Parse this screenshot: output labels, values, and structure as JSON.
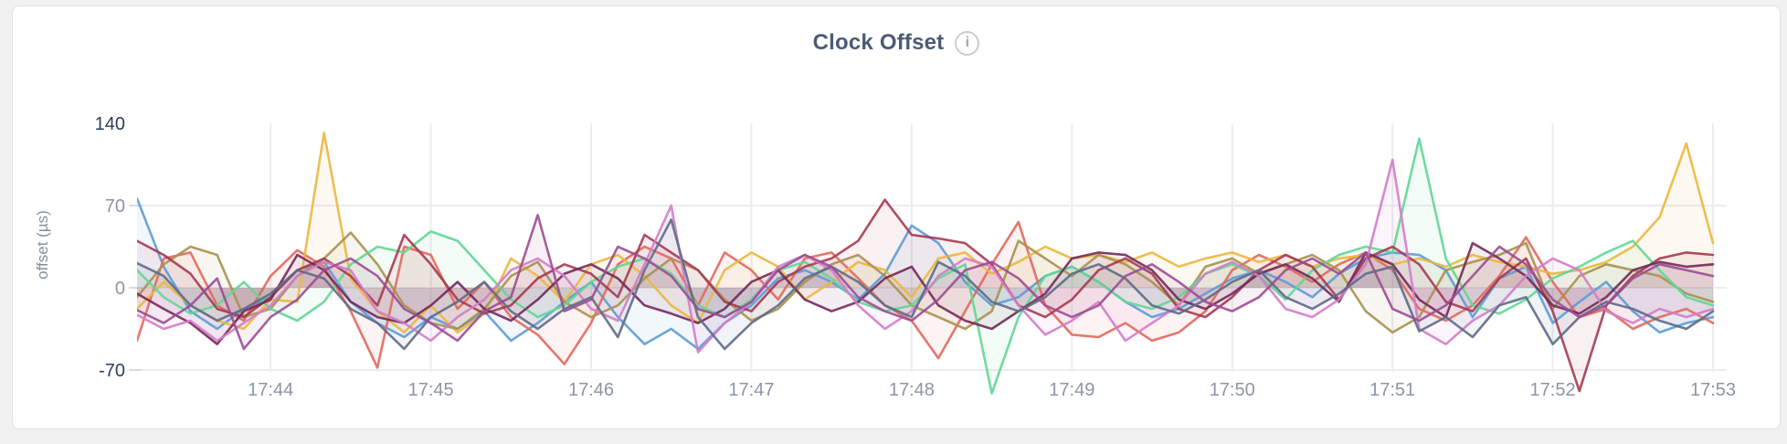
{
  "page": {
    "background_color": "#f1f1f2",
    "card_background": "#ffffff",
    "card_border_color": "#e1e1e4"
  },
  "header": {
    "title": "Clock Offset",
    "info_icon_glyph": "i"
  },
  "axis_style": {
    "tick_label_color": "#8b95a7",
    "tick_label_color_strong": "#2c3e5d",
    "axis_title_color": "#848e9c",
    "grid_color": "#ececee",
    "tick_dash_color": "#d8dbe0"
  },
  "chart_data": {
    "type": "line",
    "title": "Clock Offset",
    "xlabel": "",
    "ylabel": "offset (µs)",
    "y_ticks": [
      140,
      70,
      0,
      -70
    ],
    "ylim": [
      -90,
      165
    ],
    "grid": true,
    "legend_position": "none",
    "x_start_time": "17:43:10",
    "sample_interval_seconds": 10,
    "x_tick_labels": [
      "17:44",
      "17:45",
      "17:46",
      "17:47",
      "17:48",
      "17:49",
      "17:50",
      "17:51",
      "17:52",
      "17:53"
    ],
    "x_tick_indices": [
      5,
      11,
      17,
      23,
      29,
      35,
      41,
      47,
      53,
      59
    ],
    "fill_opacity": 0.08,
    "series": [
      {
        "name": "blue",
        "color": "#5B9BD5",
        "values": [
          76,
          18,
          -20,
          -35,
          -18,
          -8,
          15,
          22,
          -12,
          -30,
          -42,
          -25,
          -35,
          -20,
          -45,
          -30,
          -12,
          5,
          -25,
          -48,
          -35,
          -52,
          -30,
          -15,
          8,
          15,
          5,
          -10,
          12,
          53,
          38,
          5,
          -15,
          -8,
          10,
          18,
          5,
          -12,
          -25,
          -18,
          -5,
          8,
          15,
          5,
          -8,
          12,
          25,
          30,
          28,
          15,
          -25,
          8,
          18,
          -30,
          -12,
          5,
          -20,
          -38,
          -30,
          -25
        ]
      },
      {
        "name": "red",
        "color": "#E2685C",
        "values": [
          -45,
          25,
          30,
          -15,
          -28,
          10,
          32,
          18,
          -20,
          -68,
          35,
          28,
          -18,
          5,
          -25,
          -40,
          -65,
          -30,
          20,
          35,
          25,
          -15,
          30,
          15,
          -10,
          25,
          30,
          8,
          -15,
          -28,
          -60,
          -20,
          20,
          56,
          -15,
          -40,
          -42,
          -30,
          -45,
          -38,
          -20,
          15,
          28,
          18,
          5,
          20,
          30,
          15,
          -18,
          -28,
          -15,
          10,
          43,
          5,
          -25,
          -18,
          -35,
          -25,
          -18,
          -30
        ]
      },
      {
        "name": "yellow",
        "color": "#EBB73E",
        "values": [
          -18,
          5,
          -15,
          -28,
          -35,
          -10,
          -12,
          132,
          8,
          -20,
          -38,
          -15,
          -38,
          -22,
          25,
          10,
          -12,
          20,
          28,
          10,
          -15,
          -30,
          15,
          30,
          18,
          -10,
          5,
          22,
          15,
          -8,
          25,
          30,
          12,
          22,
          35,
          25,
          28,
          22,
          30,
          18,
          25,
          30,
          22,
          28,
          18,
          25,
          28,
          20,
          25,
          18,
          28,
          22,
          18,
          12,
          15,
          22,
          35,
          60,
          123,
          38
        ]
      },
      {
        "name": "olive",
        "color": "#A8904F",
        "values": [
          -8,
          20,
          35,
          28,
          -25,
          -18,
          10,
          25,
          47,
          20,
          -15,
          -30,
          -35,
          -18,
          10,
          22,
          -12,
          -25,
          -15,
          8,
          25,
          15,
          -10,
          -28,
          -18,
          5,
          20,
          28,
          10,
          -15,
          -25,
          -35,
          -20,
          40,
          25,
          10,
          28,
          20,
          5,
          -15,
          18,
          25,
          12,
          20,
          28,
          15,
          -20,
          -38,
          -25,
          15,
          22,
          28,
          38,
          -18,
          10,
          20,
          15,
          10,
          -5,
          -12
        ]
      },
      {
        "name": "green",
        "color": "#62D693",
        "values": [
          15,
          -8,
          -22,
          -15,
          5,
          -18,
          -28,
          -12,
          20,
          35,
          30,
          48,
          40,
          15,
          -10,
          -25,
          -15,
          5,
          18,
          25,
          12,
          -15,
          -25,
          -10,
          15,
          22,
          8,
          -12,
          -20,
          -15,
          8,
          20,
          -90,
          -25,
          10,
          18,
          5,
          -12,
          -18,
          -8,
          12,
          20,
          10,
          -10,
          15,
          28,
          35,
          30,
          127,
          25,
          -15,
          -22,
          -10,
          8,
          18,
          30,
          40,
          15,
          -8,
          -15
        ]
      },
      {
        "name": "maroon",
        "color": "#A43A52",
        "values": [
          40,
          28,
          12,
          -18,
          -25,
          -8,
          15,
          25,
          10,
          -15,
          45,
          20,
          -10,
          -22,
          -15,
          8,
          20,
          12,
          -8,
          45,
          30,
          15,
          -12,
          -20,
          5,
          18,
          25,
          40,
          75,
          45,
          42,
          38,
          20,
          -15,
          -25,
          -10,
          15,
          25,
          12,
          -18,
          -25,
          -8,
          15,
          28,
          18,
          -10,
          25,
          35,
          20,
          -12,
          -20,
          8,
          25,
          -20,
          -88,
          -15,
          10,
          25,
          30,
          28
        ]
      },
      {
        "name": "plum",
        "color": "#73295B",
        "values": [
          -5,
          -18,
          -30,
          -48,
          -20,
          -10,
          28,
          15,
          -12,
          -25,
          -30,
          -15,
          5,
          -18,
          -28,
          -10,
          12,
          20,
          8,
          -15,
          -22,
          -30,
          -18,
          5,
          15,
          -10,
          -20,
          -12,
          8,
          18,
          -15,
          -28,
          -35,
          -20,
          -5,
          25,
          30,
          28,
          15,
          -10,
          -18,
          -5,
          12,
          20,
          8,
          -12,
          30,
          20,
          -10,
          -25,
          38,
          25,
          10,
          -15,
          -22,
          -8,
          15,
          22,
          18,
          20
        ]
      },
      {
        "name": "orchid",
        "color": "#D37CCA",
        "values": [
          -23,
          -35,
          -28,
          -45,
          -30,
          -15,
          10,
          22,
          15,
          -20,
          -30,
          -45,
          -25,
          -10,
          15,
          25,
          10,
          -18,
          -28,
          20,
          70,
          -55,
          -30,
          -12,
          18,
          28,
          15,
          -15,
          -35,
          -20,
          10,
          25,
          18,
          -15,
          -40,
          -28,
          -12,
          -45,
          -30,
          -15,
          12,
          22,
          10,
          -18,
          -25,
          -10,
          20,
          109,
          -35,
          -48,
          -28,
          -15,
          10,
          25,
          15,
          -20,
          -30,
          -18,
          -25,
          -18
        ]
      },
      {
        "name": "slate",
        "color": "#5D6B87",
        "values": [
          21,
          10,
          -15,
          -28,
          -18,
          -5,
          15,
          8,
          -18,
          -30,
          -52,
          -25,
          -12,
          5,
          -20,
          -35,
          -18,
          -8,
          -42,
          15,
          58,
          -25,
          -52,
          -30,
          -15,
          8,
          18,
          5,
          -15,
          -25,
          22,
          10,
          -12,
          -20,
          -8,
          12,
          20,
          8,
          -15,
          -22,
          -10,
          5,
          15,
          -8,
          -18,
          -5,
          12,
          18,
          -37,
          -25,
          -42,
          -15,
          -8,
          -48,
          -25,
          -12,
          -18,
          -28,
          -35,
          -20
        ]
      },
      {
        "name": "violet",
        "color": "#9A4E92",
        "values": [
          -19,
          -30,
          -15,
          8,
          -52,
          -25,
          -10,
          15,
          25,
          10,
          -18,
          -30,
          -45,
          -20,
          -8,
          62,
          -20,
          -10,
          35,
          25,
          10,
          -18,
          -25,
          -12,
          15,
          28,
          18,
          -8,
          -20,
          -28,
          -10,
          15,
          22,
          8,
          -15,
          -25,
          -15,
          10,
          20,
          5,
          -12,
          -20,
          -8,
          15,
          25,
          12,
          30,
          -18,
          -28,
          -15,
          10,
          35,
          20,
          -10,
          -25,
          -15,
          8,
          20,
          15,
          10
        ]
      }
    ]
  }
}
